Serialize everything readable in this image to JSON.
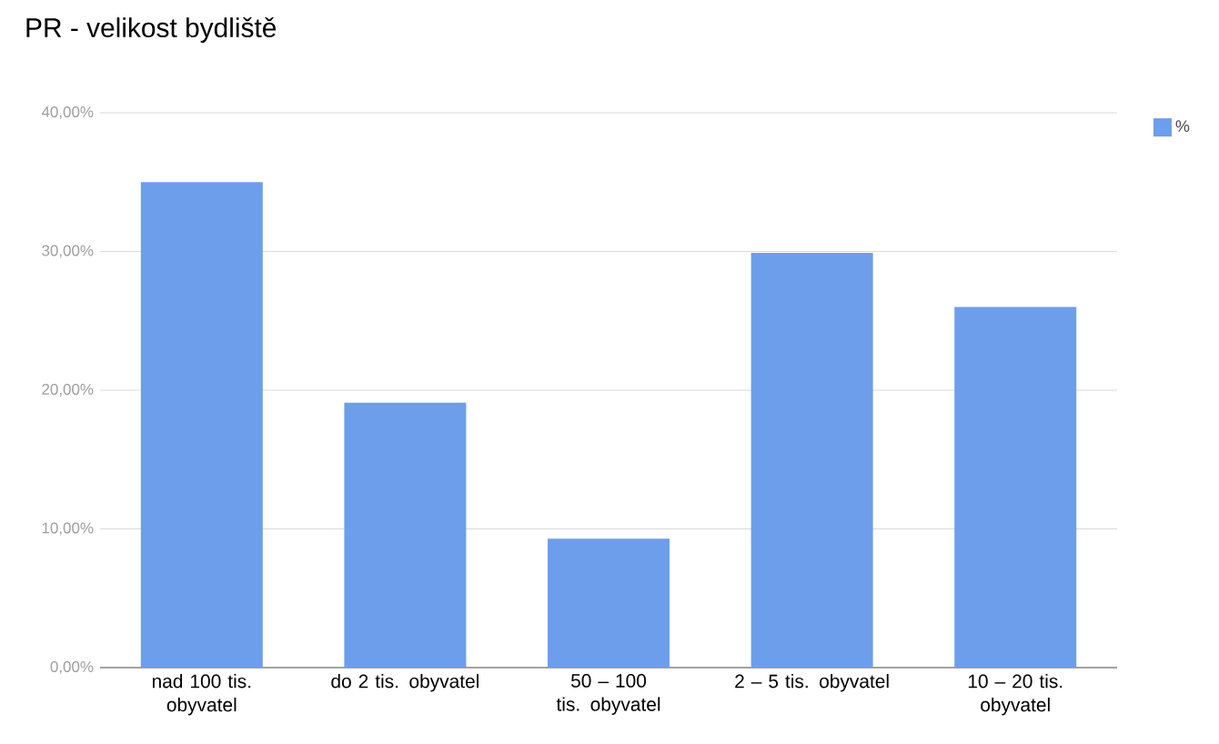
{
  "chart_data": {
    "type": "bar",
    "title": "PR - velikost bydliště",
    "categories": [
      "nad 100 tis. obyvatel",
      "do 2 tis. obyvatel",
      "50 – 100 tis. obyvatel",
      "2 – 5 tis. obyvatel",
      "10 – 20 tis. obyvatel"
    ],
    "series": [
      {
        "name": "%",
        "color": "#6d9eeb",
        "values": [
          35.0,
          19.1,
          9.3,
          29.9,
          26.0
        ]
      }
    ],
    "ylim": [
      0,
      40
    ],
    "yticks": [
      {
        "value": 0,
        "label": "0,00%"
      },
      {
        "value": 10,
        "label": "10,00%"
      },
      {
        "value": 20,
        "label": "20,00%"
      },
      {
        "value": 30,
        "label": "30,00%"
      },
      {
        "value": 40,
        "label": "40,00%"
      }
    ],
    "grid": "y",
    "legend": "top right"
  }
}
